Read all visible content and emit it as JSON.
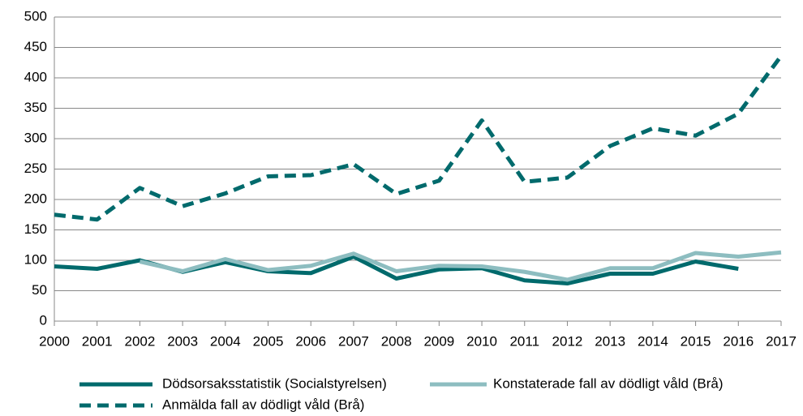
{
  "chart_data": {
    "type": "line",
    "x": [
      2000,
      2001,
      2002,
      2003,
      2004,
      2005,
      2006,
      2007,
      2008,
      2009,
      2010,
      2011,
      2012,
      2013,
      2014,
      2015,
      2016,
      2017
    ],
    "xlim": [
      2000,
      2017
    ],
    "xticks": [
      2000,
      2001,
      2002,
      2003,
      2004,
      2005,
      2006,
      2007,
      2008,
      2009,
      2010,
      2011,
      2012,
      2013,
      2014,
      2015,
      2016,
      2017
    ],
    "ylim": [
      0,
      500
    ],
    "yticks": [
      0,
      50,
      100,
      150,
      200,
      250,
      300,
      350,
      400,
      450,
      500
    ],
    "grid": true,
    "legend": "bottom",
    "series": [
      {
        "name": "Dödsorsaksstatistik (Socialstyrelsen)",
        "color": "#006a6c",
        "dashed": false,
        "values": [
          90,
          86,
          100,
          81,
          97,
          82,
          79,
          106,
          70,
          85,
          87,
          67,
          62,
          78,
          78,
          98,
          86,
          null
        ]
      },
      {
        "name": "Konstaterade fall av dödligt våld (Brå)",
        "color": "#8dbdc0",
        "dashed": false,
        "values": [
          null,
          null,
          98,
          82,
          102,
          84,
          91,
          111,
          82,
          91,
          90,
          81,
          68,
          87,
          87,
          112,
          106,
          113
        ]
      },
      {
        "name": "Anmälda fall av dödligt våld (Brå)",
        "color": "#006a6c",
        "dashed": true,
        "values": [
          175,
          167,
          219,
          189,
          210,
          238,
          240,
          258,
          209,
          231,
          330,
          229,
          236,
          288,
          317,
          305,
          341,
          436
        ]
      }
    ]
  }
}
